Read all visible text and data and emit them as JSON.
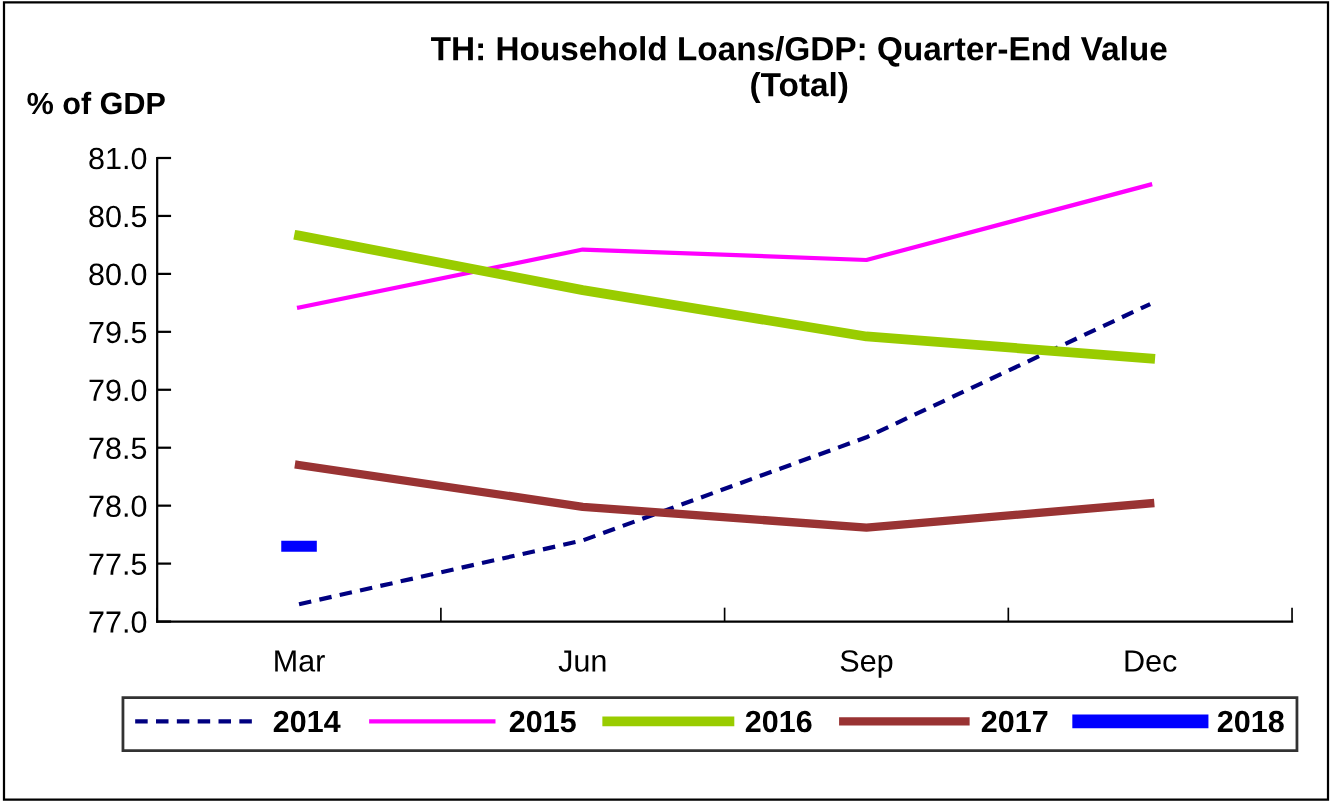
{
  "chart_data": {
    "type": "line",
    "title": "TH: Household Loans/GDP: Quarter-End Value\n(Total)",
    "ylabel": "% of GDP",
    "categories": [
      "Mar",
      "Jun",
      "Sep",
      "Dec"
    ],
    "series": [
      {
        "name": "2014",
        "color": "#000080",
        "values": [
          77.15,
          77.7,
          78.59,
          79.74
        ],
        "line_style": "dashed"
      },
      {
        "name": "2015",
        "color": "#ff00ff",
        "values": [
          79.71,
          80.21,
          80.12,
          80.77
        ]
      },
      {
        "name": "2016",
        "color": "#99cc00",
        "values": [
          80.33,
          79.86,
          79.46,
          79.27
        ]
      },
      {
        "name": "2017",
        "color": "#993333",
        "values": [
          78.35,
          77.99,
          77.81,
          78.02
        ]
      },
      {
        "name": "2018",
        "color": "#0000ff",
        "values": [
          77.65,
          null,
          null,
          null
        ],
        "marker": "square"
      }
    ],
    "ylim": [
      77.0,
      81.0
    ],
    "yticks": [
      {
        "value": 77,
        "label": "77.0"
      },
      77.5,
      {
        "value": 78,
        "label": "78.0"
      },
      78.5,
      {
        "value": 79,
        "label": "79.0"
      },
      79.5,
      {
        "value": 80,
        "label": "80.0"
      },
      80.5,
      {
        "value": 81,
        "label": "81.0"
      }
    ],
    "grid": false,
    "legend": "bottom",
    "line_style": "solid",
    "marker": "none"
  }
}
